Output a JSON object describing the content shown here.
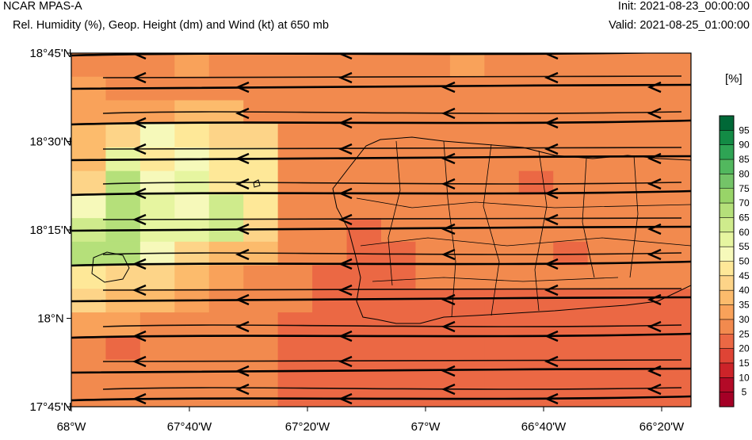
{
  "header": {
    "title": "NCAR MPAS-A",
    "subtitle": "Rel. Humidity (%), Geop. Height (dm) and Wind (kt) at 650 mb",
    "init": "Init: 2021-08-23_00:00:00",
    "valid": "Valid: 2021-08-25_01:00:00"
  },
  "map": {
    "lat_ticks": [
      "18°45'N",
      "18°30'N",
      "18°15'N",
      "18°N",
      "17°45'N"
    ],
    "lon_ticks": [
      "68°W",
      "67°40'W",
      "67°20'W",
      "67°W",
      "66°40'W",
      "66°20'W"
    ],
    "wind_direction": "from east (arrows point west)",
    "rh_grid_bands": [
      [
        30,
        30,
        30,
        35,
        30,
        30,
        30,
        30,
        30,
        30,
        30,
        35,
        30,
        30,
        30,
        30,
        30,
        30
      ],
      [
        35,
        30,
        30,
        30,
        30,
        30,
        30,
        30,
        30,
        30,
        30,
        30,
        30,
        30,
        30,
        30,
        30,
        30
      ],
      [
        35,
        35,
        35,
        40,
        40,
        30,
        30,
        30,
        30,
        30,
        30,
        30,
        30,
        30,
        30,
        30,
        30,
        30
      ],
      [
        40,
        45,
        55,
        50,
        45,
        45,
        30,
        30,
        30,
        30,
        30,
        30,
        30,
        30,
        30,
        30,
        30,
        30
      ],
      [
        40,
        60,
        50,
        55,
        50,
        50,
        30,
        30,
        30,
        30,
        30,
        30,
        30,
        30,
        30,
        30,
        30,
        30
      ],
      [
        45,
        70,
        55,
        60,
        50,
        50,
        30,
        30,
        30,
        30,
        30,
        30,
        30,
        25,
        30,
        30,
        30,
        30
      ],
      [
        55,
        70,
        60,
        55,
        65,
        50,
        30,
        30,
        30,
        30,
        30,
        30,
        30,
        30,
        30,
        30,
        30,
        30
      ],
      [
        65,
        70,
        60,
        60,
        65,
        45,
        30,
        30,
        25,
        30,
        30,
        30,
        30,
        30,
        30,
        30,
        30,
        30
      ],
      [
        70,
        70,
        55,
        45,
        40,
        40,
        30,
        30,
        25,
        25,
        30,
        30,
        30,
        30,
        25,
        30,
        30,
        30
      ],
      [
        50,
        45,
        45,
        40,
        35,
        30,
        30,
        25,
        25,
        25,
        30,
        30,
        30,
        30,
        30,
        30,
        30,
        30
      ],
      [
        45,
        40,
        40,
        35,
        30,
        30,
        30,
        25,
        25,
        25,
        25,
        25,
        25,
        25,
        25,
        25,
        25,
        25
      ],
      [
        35,
        35,
        30,
        30,
        30,
        30,
        25,
        25,
        25,
        25,
        25,
        25,
        25,
        25,
        25,
        25,
        25,
        25
      ],
      [
        30,
        25,
        30,
        30,
        30,
        30,
        25,
        25,
        25,
        25,
        25,
        25,
        25,
        25,
        25,
        25,
        25,
        25
      ],
      [
        30,
        30,
        30,
        30,
        30,
        30,
        25,
        25,
        25,
        25,
        25,
        25,
        25,
        25,
        25,
        25,
        25,
        25
      ],
      [
        30,
        30,
        30,
        30,
        30,
        30,
        25,
        25,
        25,
        25,
        25,
        25,
        25,
        25,
        25,
        25,
        25,
        25
      ]
    ]
  },
  "colorbar": {
    "units_label": "[%]",
    "labels": [
      "95",
      "90",
      "85",
      "80",
      "75",
      "70",
      "65",
      "60",
      "55",
      "50",
      "45",
      "40",
      "35",
      "30",
      "25",
      "20",
      "15",
      "10",
      "5"
    ],
    "colors": [
      "#006837",
      "#138b45",
      "#2ea454",
      "#52b85e",
      "#74c468",
      "#98d468",
      "#b5e07a",
      "#cfeb8c",
      "#e6f5a0",
      "#f6f9ba",
      "#fee898",
      "#fdd488",
      "#fcbb6c",
      "#f9a25a",
      "#f28a4e",
      "#eb6844",
      "#df4435",
      "#cc2329",
      "#b30a27",
      "#a50026"
    ]
  }
}
